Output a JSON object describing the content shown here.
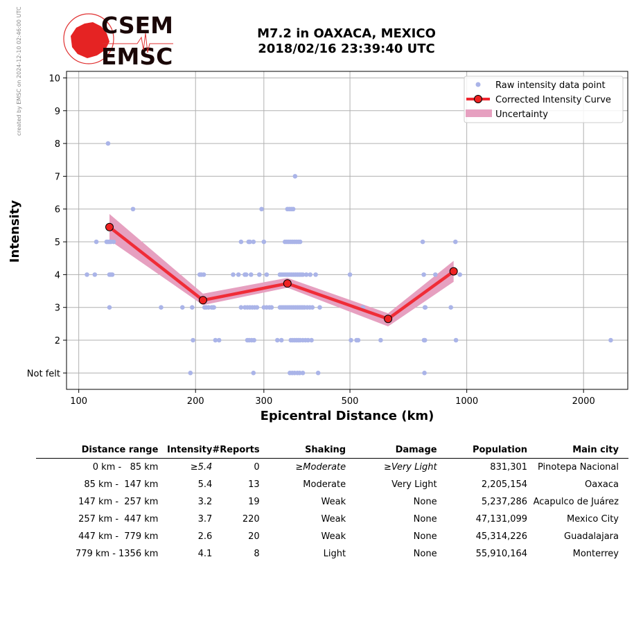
{
  "side_note": "created by EMSC on 2024-12-10 02:46:00 UTC",
  "logo": {
    "line1": "CSEM",
    "line2": "EMSC"
  },
  "title": {
    "line1": "M7.2 in OAXACA, MEXICO",
    "line2": "2018/02/16 23:39:40 UTC"
  },
  "colors": {
    "raw": "#aab4e8",
    "curve": "#f0262f",
    "uncertainty": "#e6a0c0",
    "marker": "#ee2222"
  },
  "chart_data": {
    "type": "scatter",
    "xlabel": "Epicentral Distance (km)",
    "ylabel": "Intensity",
    "x_scale": "log",
    "xlim": [
      93,
      2600
    ],
    "ylim": [
      0.5,
      10.2
    ],
    "x_ticks": [
      {
        "v": 100,
        "label": "100"
      },
      {
        "v": 200,
        "label": "200"
      },
      {
        "v": 300,
        "label": "300"
      },
      {
        "v": 500,
        "label": "500"
      },
      {
        "v": 1000,
        "label": "1000"
      },
      {
        "v": 2000,
        "label": "2000"
      }
    ],
    "y_ticks": [
      {
        "v": 1,
        "label": "Not felt"
      },
      {
        "v": 2,
        "label": "2"
      },
      {
        "v": 3,
        "label": "3"
      },
      {
        "v": 4,
        "label": "4"
      },
      {
        "v": 5,
        "label": "5"
      },
      {
        "v": 6,
        "label": "6"
      },
      {
        "v": 7,
        "label": "7"
      },
      {
        "v": 8,
        "label": "8"
      },
      {
        "v": 9,
        "label": "9"
      },
      {
        "v": 10,
        "label": "10"
      }
    ],
    "grid": true,
    "legend_position": "top-right",
    "legend": [
      "Raw intensity data point",
      "Corrected Intensity Curve",
      "Uncertainty"
    ],
    "raw_points": [
      [
        105,
        4
      ],
      [
        110,
        4
      ],
      [
        111,
        5
      ],
      [
        118,
        5
      ],
      [
        119,
        5
      ],
      [
        120,
        5
      ],
      [
        121,
        5
      ],
      [
        123,
        5
      ],
      [
        119,
        8
      ],
      [
        120,
        4
      ],
      [
        121,
        4
      ],
      [
        122,
        4
      ],
      [
        120,
        3
      ],
      [
        138,
        6
      ],
      [
        163,
        3
      ],
      [
        185,
        3
      ],
      [
        196,
        3
      ],
      [
        197,
        2
      ],
      [
        194,
        1
      ],
      [
        205,
        4
      ],
      [
        207,
        4
      ],
      [
        210,
        4
      ],
      [
        211,
        3
      ],
      [
        213,
        3
      ],
      [
        216,
        3
      ],
      [
        220,
        3
      ],
      [
        222,
        3
      ],
      [
        223,
        3
      ],
      [
        225,
        2
      ],
      [
        230,
        2
      ],
      [
        250,
        4
      ],
      [
        258,
        4
      ],
      [
        262,
        5
      ],
      [
        268,
        4
      ],
      [
        270,
        4
      ],
      [
        274,
        5
      ],
      [
        276,
        5
      ],
      [
        278,
        4
      ],
      [
        282,
        5
      ],
      [
        262,
        3
      ],
      [
        268,
        3
      ],
      [
        272,
        3
      ],
      [
        276,
        3
      ],
      [
        280,
        3
      ],
      [
        284,
        3
      ],
      [
        288,
        3
      ],
      [
        272,
        2
      ],
      [
        275,
        2
      ],
      [
        279,
        2
      ],
      [
        283,
        2
      ],
      [
        282,
        1
      ],
      [
        292,
        4
      ],
      [
        296,
        6
      ],
      [
        300,
        5
      ],
      [
        300,
        3
      ],
      [
        305,
        3
      ],
      [
        310,
        3
      ],
      [
        314,
        3
      ],
      [
        305,
        4
      ],
      [
        325,
        2
      ],
      [
        333,
        2
      ],
      [
        330,
        3
      ],
      [
        334,
        3
      ],
      [
        338,
        3
      ],
      [
        342,
        3
      ],
      [
        346,
        3
      ],
      [
        350,
        3
      ],
      [
        354,
        3
      ],
      [
        358,
        3
      ],
      [
        362,
        3
      ],
      [
        366,
        3
      ],
      [
        370,
        3
      ],
      [
        374,
        3
      ],
      [
        378,
        3
      ],
      [
        382,
        3
      ],
      [
        388,
        3
      ],
      [
        394,
        3
      ],
      [
        400,
        3
      ],
      [
        418,
        3
      ],
      [
        330,
        4
      ],
      [
        334,
        4
      ],
      [
        338,
        4
      ],
      [
        342,
        4
      ],
      [
        346,
        4
      ],
      [
        350,
        4
      ],
      [
        354,
        4
      ],
      [
        358,
        4
      ],
      [
        362,
        4
      ],
      [
        366,
        4
      ],
      [
        370,
        4
      ],
      [
        374,
        4
      ],
      [
        378,
        4
      ],
      [
        386,
        4
      ],
      [
        395,
        4
      ],
      [
        408,
        4
      ],
      [
        340,
        5
      ],
      [
        344,
        5
      ],
      [
        348,
        5
      ],
      [
        352,
        5
      ],
      [
        356,
        5
      ],
      [
        360,
        5
      ],
      [
        364,
        5
      ],
      [
        368,
        5
      ],
      [
        372,
        5
      ],
      [
        345,
        6
      ],
      [
        349,
        6
      ],
      [
        353,
        6
      ],
      [
        357,
        6
      ],
      [
        361,
        7
      ],
      [
        352,
        2
      ],
      [
        356,
        2
      ],
      [
        360,
        2
      ],
      [
        364,
        2
      ],
      [
        368,
        2
      ],
      [
        372,
        2
      ],
      [
        378,
        2
      ],
      [
        384,
        2
      ],
      [
        390,
        2
      ],
      [
        398,
        2
      ],
      [
        350,
        1
      ],
      [
        355,
        1
      ],
      [
        360,
        1
      ],
      [
        366,
        1
      ],
      [
        371,
        1
      ],
      [
        378,
        1
      ],
      [
        414,
        1
      ],
      [
        500,
        4
      ],
      [
        503,
        2
      ],
      [
        520,
        2
      ],
      [
        525,
        2
      ],
      [
        540,
        3
      ],
      [
        600,
        2
      ],
      [
        770,
        5
      ],
      [
        775,
        4
      ],
      [
        780,
        3
      ],
      [
        782,
        3
      ],
      [
        776,
        2
      ],
      [
        780,
        2
      ],
      [
        778,
        1
      ],
      [
        830,
        4
      ],
      [
        910,
        3
      ],
      [
        935,
        5
      ],
      [
        938,
        2
      ],
      [
        960,
        4
      ],
      [
        2350,
        2
      ]
    ],
    "curve": {
      "x": [
        120,
        209,
        345,
        627,
        925
      ],
      "y": [
        5.45,
        3.22,
        3.73,
        2.65,
        4.1
      ],
      "lower": [
        5.05,
        3.07,
        3.6,
        2.42,
        3.78
      ],
      "upper": [
        5.85,
        3.42,
        3.9,
        2.82,
        4.42
      ]
    }
  },
  "table": {
    "headers": [
      "Distance range",
      "Intensity",
      "#Reports",
      "Shaking",
      "Damage",
      "Population",
      "Main city"
    ],
    "rows": [
      [
        "0 km -   85 km",
        "≥5.4",
        "0",
        "≥Moderate",
        "≥Very Light",
        "831,301",
        "Pinotepa Nacional"
      ],
      [
        "85 km -  147 km",
        "5.4",
        "13",
        "Moderate",
        "Very Light",
        "2,205,154",
        "Oaxaca"
      ],
      [
        "147 km -  257 km",
        "3.2",
        "19",
        "Weak",
        "None",
        "5,237,286",
        "Acapulco de Juárez"
      ],
      [
        "257 km -  447 km",
        "3.7",
        "220",
        "Weak",
        "None",
        "47,131,099",
        "Mexico City"
      ],
      [
        "447 km -  779 km",
        "2.6",
        "20",
        "Weak",
        "None",
        "45,314,226",
        "Guadalajara"
      ],
      [
        "779 km - 1356 km",
        "4.1",
        "8",
        "Light",
        "None",
        "55,910,164",
        "Monterrey"
      ]
    ]
  }
}
